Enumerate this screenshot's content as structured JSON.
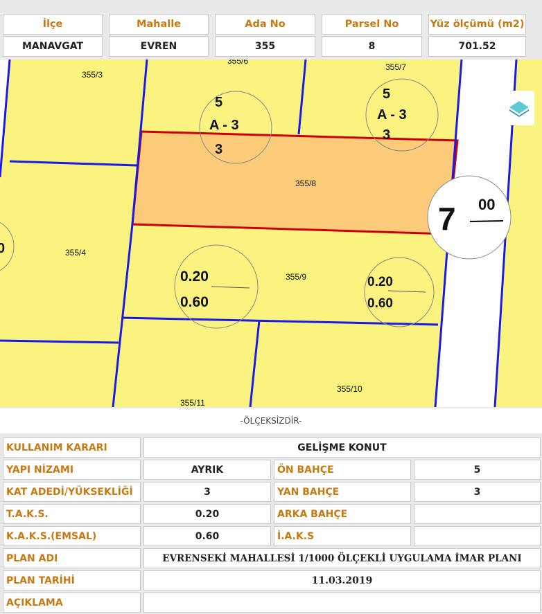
{
  "header": {
    "columns": [
      "İlçe",
      "Mahalle",
      "Ada No",
      "Parsel No",
      "Yüz ölçümü (m2)"
    ],
    "values": [
      "MANAVGAT",
      "EVREN",
      "355",
      "8",
      "701.52"
    ]
  },
  "map": {
    "parcels": [
      "355/3",
      "355/6",
      "355/7",
      "355/8",
      "355/4",
      "355/9",
      "355/10",
      "355/11"
    ],
    "circle1": {
      "top": "5",
      "mid": "A - 3",
      "bottom": "3"
    },
    "circle2": {
      "top": "5",
      "mid": "A - 3",
      "bottom": "3"
    },
    "circle3": {
      "top": "0.20",
      "bottom": "0.60"
    },
    "circle4": {
      "top": "0.20",
      "bottom": "0.60"
    },
    "road": {
      "big": "7",
      "small": "00"
    },
    "partial_left": "0",
    "colors": {
      "parcel_fill": "#fbf380",
      "selected_fill": "#fccb79",
      "selected_border": "#cc0000",
      "border": "#1a1ae6"
    }
  },
  "scale_note": "-ÖLÇEKSİZDİR-",
  "info": {
    "kullanim_karari": {
      "label": "KULLANIM KARARI",
      "value": "GELİŞME KONUT"
    },
    "yapi_nizami": {
      "label": "YAPI NİZAMI",
      "value": "AYRIK"
    },
    "on_bahce": {
      "label": "ÖN BAHÇE",
      "value": "5"
    },
    "kat_adedi": {
      "label": "KAT ADEDİ/YÜKSEKLİĞİ",
      "value": "3"
    },
    "yan_bahce": {
      "label": "YAN BAHÇE",
      "value": "3"
    },
    "taks": {
      "label": "T.A.K.S.",
      "value": "0.20"
    },
    "arka_bahce": {
      "label": "ARKA BAHÇE",
      "value": ""
    },
    "kaks": {
      "label": "K.A.K.S.(EMSAL)",
      "value": "0.60"
    },
    "iaks": {
      "label": "İ.A.K.S",
      "value": ""
    },
    "plan_adi": {
      "label": "PLAN ADI",
      "value": "EVRENSEKİ MAHALLESİ 1/1000 ÖLÇEKLİ UYGULAMA İMAR PLANI"
    },
    "plan_tarihi": {
      "label": "PLAN TARİHİ",
      "value": "11.03.2019"
    },
    "aciklama": {
      "label": "AÇIKLAMA",
      "value": ""
    }
  }
}
